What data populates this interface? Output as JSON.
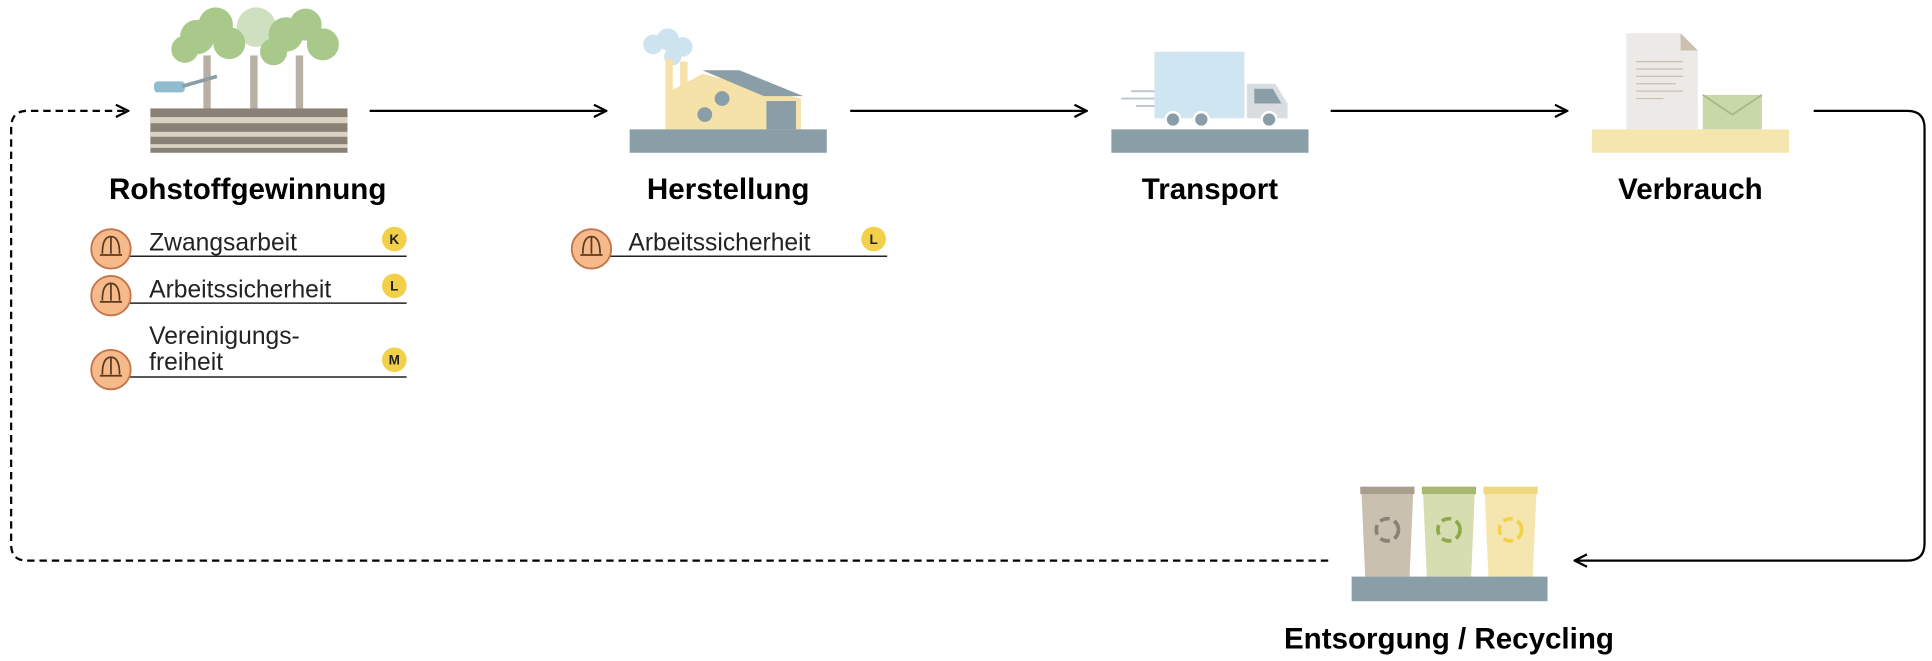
{
  "stages": [
    {
      "title": "Rohstoffgewinnung",
      "issues": [
        {
          "label": "Zwangsarbeit",
          "badge": "K"
        },
        {
          "label": "Arbeitssicherheit",
          "badge": "L"
        },
        {
          "label": [
            "Vereinigungs-",
            "freiheit"
          ],
          "badge": "M"
        }
      ]
    },
    {
      "title": "Herstellung",
      "issues": [
        {
          "label": "Arbeitssicherheit",
          "badge": "L"
        }
      ]
    },
    {
      "title": "Transport"
    },
    {
      "title": "Verbrauch"
    },
    {
      "title": "Entsorgung / Recycling"
    }
  ]
}
